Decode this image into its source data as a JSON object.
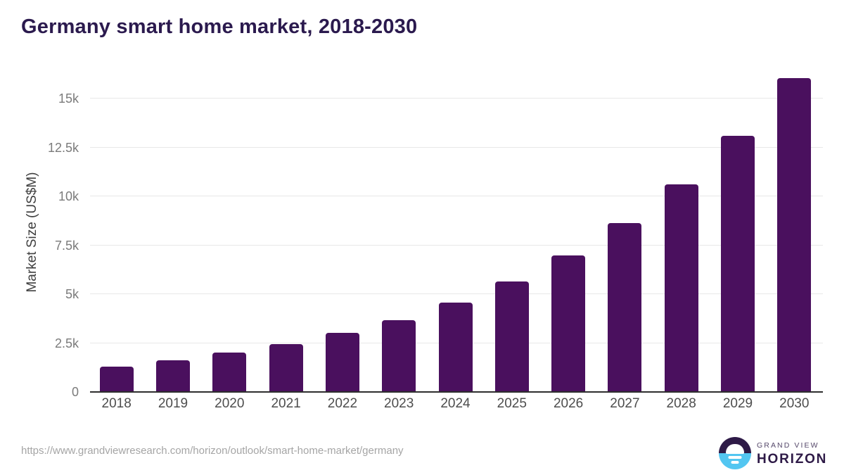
{
  "title": "Germany smart home market, 2018-2030",
  "chart_data": {
    "type": "bar",
    "title": "Germany smart home market, 2018-2030",
    "xlabel": "",
    "ylabel": "Market Size (US$M)",
    "categories": [
      "2018",
      "2019",
      "2020",
      "2021",
      "2022",
      "2023",
      "2024",
      "2025",
      "2026",
      "2027",
      "2028",
      "2029",
      "2030"
    ],
    "values": [
      1300,
      1630,
      2000,
      2440,
      3010,
      3680,
      4560,
      5640,
      6990,
      8640,
      10620,
      13080,
      16030
    ],
    "unit": "US$M",
    "ylim": [
      0,
      16300
    ],
    "yticks": [
      {
        "label": "0",
        "value": 0
      },
      {
        "label": "2.5k",
        "value": 2500
      },
      {
        "label": "5k",
        "value": 5000
      },
      {
        "label": "7.5k",
        "value": 7500
      },
      {
        "label": "10k",
        "value": 10000
      },
      {
        "label": "12.5k",
        "value": 12500
      },
      {
        "label": "15k",
        "value": 15000
      }
    ],
    "grid": "horizontal",
    "legend": "none",
    "bar_color": "#4a105e"
  },
  "colors": {
    "background": "#ffffff",
    "bar": "#4a105e",
    "title": "#2b1a4e",
    "axis_title": "#3f3f3f",
    "y_tick_label": "#7b7b7b",
    "x_tick_label": "#4d4d4d",
    "gridline": "#e8e8e8",
    "axis_line": "#2e2e2e",
    "source_url": "#a5a5a5",
    "logo_purple": "#2e1a47",
    "logo_blue": "#53c6f1",
    "logo_gray_purple": "#55486a"
  },
  "footer": {
    "source_url": "https://www.grandviewresearch.com/horizon/outlook/smart-home-market/germany",
    "logo": {
      "icon": "sunrise-horizon-circle-icon",
      "line1": "GRAND VIEW",
      "line2": "HORIZON"
    }
  }
}
